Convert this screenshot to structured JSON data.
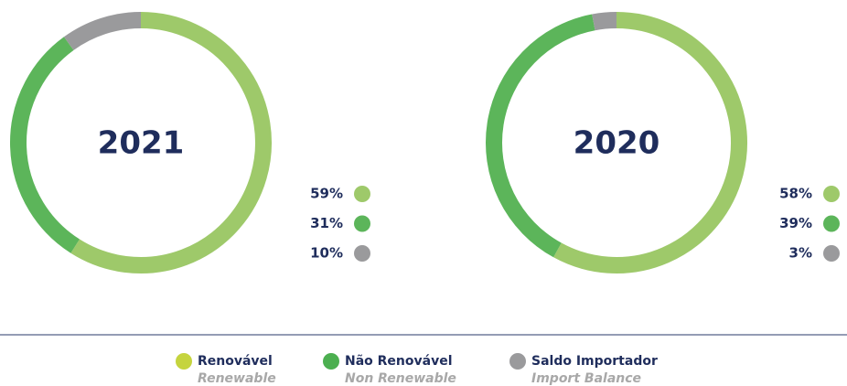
{
  "chart_data": [
    {
      "type": "donut",
      "title": "2021",
      "values": [
        59,
        31,
        10
      ],
      "value_labels": [
        "59%",
        "31%",
        "10%"
      ],
      "colors": [
        "#9ec96a",
        "#5cb55a",
        "#9a9a9c"
      ]
    },
    {
      "type": "donut",
      "title": "2020",
      "values": [
        58,
        39,
        3
      ],
      "value_labels": [
        "58%",
        "39%",
        "3%"
      ],
      "colors": [
        "#9ec96a",
        "#5cb55a",
        "#9a9a9c"
      ]
    }
  ],
  "legend": [
    {
      "name": "Renovável",
      "translation": "Renewable",
      "color": "#c5d43e"
    },
    {
      "name": "Não Renovável",
      "translation": "Non Renewable",
      "color": "#4caf50"
    },
    {
      "name": "Saldo Importador",
      "translation": "Import Balance",
      "color": "#9a9a9c"
    }
  ]
}
